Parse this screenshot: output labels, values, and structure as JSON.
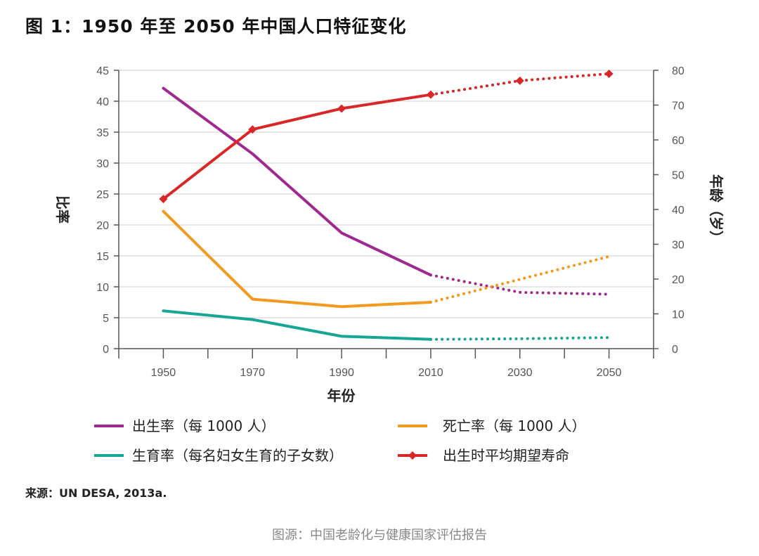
{
  "chart_data": {
    "type": "line",
    "title": "图 1：1950 年至 2050 年中国人口特征变化",
    "x": [
      1950,
      1970,
      1990,
      2010,
      2030,
      2050
    ],
    "xlabel": "年份",
    "ylabel_left": "比率",
    "ylabel_right": "年龄（岁）",
    "ylim_left": [
      0,
      45
    ],
    "ylim_right": [
      0,
      80
    ],
    "xlim": [
      1940,
      2060
    ],
    "yticks_left": [
      0,
      5,
      10,
      15,
      20,
      25,
      30,
      35,
      40,
      45
    ],
    "yticks_right": [
      0,
      10,
      20,
      30,
      40,
      50,
      60,
      70,
      80
    ],
    "projection_start": 2010,
    "series": [
      {
        "name": "出生率（每 1000 人）",
        "axis": "left",
        "color": "#a0298f",
        "marker": false,
        "values": [
          42.1,
          31.5,
          18.7,
          11.9,
          9.1,
          8.8
        ]
      },
      {
        "name": "死亡率（每 1000 人）",
        "axis": "left",
        "color": "#f29a1f",
        "marker": false,
        "values": [
          22.2,
          8.0,
          6.8,
          7.5,
          11.2,
          14.9
        ]
      },
      {
        "name": "生育率（每名妇女生育的子女数）",
        "axis": "left",
        "color": "#17a594",
        "marker": false,
        "values": [
          6.1,
          4.7,
          2.0,
          1.5,
          1.6,
          1.8
        ]
      },
      {
        "name": "出生时平均期望寿命",
        "axis": "right",
        "color": "#d92627",
        "marker": true,
        "values": [
          43,
          63,
          69,
          73,
          77,
          79
        ]
      }
    ],
    "source": "来源：UN DESA, 2013a."
  },
  "footer": {
    "credit": "图源：中国老龄化与健康国家评估报告"
  }
}
